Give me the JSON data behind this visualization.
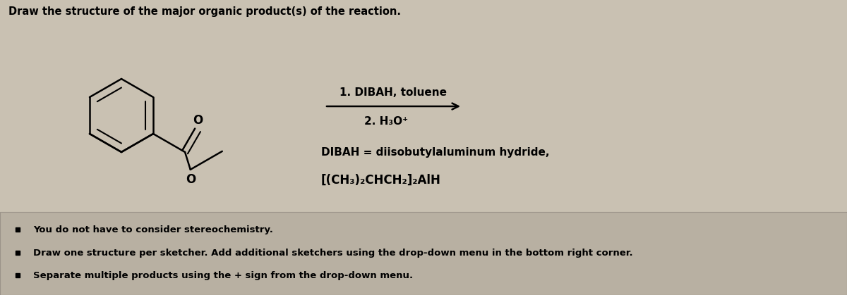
{
  "title": "Draw the structure of the major organic product(s) of the reaction.",
  "bg_color": "#c9c1b2",
  "bottom_bg_color": "#b8b0a2",
  "step1_text": "1. DIBAH, toluene",
  "step2_text": "2. H₃O⁺",
  "dibah_line1": "DIBAH = diisobutylaluminum hydride,",
  "dibah_line2": "[(CH₃)₂CHCH₂]₂AlH",
  "bullet1": "You do not have to consider stereochemistry.",
  "bullet2": "Draw one structure per sketcher. Add additional sketchers using the drop-down menu in the bottom right corner.",
  "bullet3": "Separate multiple products using the + sign from the drop-down menu.",
  "title_fontsize": 10.5,
  "label_fontsize": 11,
  "small_fontsize": 9.5
}
